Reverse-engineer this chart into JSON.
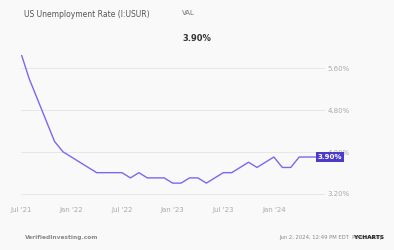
{
  "title_left": "US Unemployment Rate (I:USUR)",
  "title_val_label": "VAL",
  "title_val": "3.90%",
  "footer_left": "VerifiedInvesting.com",
  "footer_right_plain": "Jun 2, 2024, 12:49 PM EDT  Powered by ",
  "footer_ycharts": "YCHARTS",
  "line_color": "#7b68ee",
  "label_bg": "#4b3bc8",
  "yticks": [
    3.2,
    4.0,
    4.8,
    5.6
  ],
  "ytick_labels": [
    "3.20%",
    "4.00%",
    "4.80%",
    "5.60%"
  ],
  "xtick_labels": [
    "Jul '21",
    "Jan '22",
    "Jul '22",
    "Jan '23",
    "Jul '23",
    "Jan '24"
  ],
  "ylim": [
    3.0,
    5.85
  ],
  "xlim": [
    0,
    36
  ],
  "background_color": "#f9f9f9",
  "data_x": [
    0,
    1,
    2,
    3,
    4,
    5,
    6,
    7,
    8,
    9,
    10,
    11,
    12,
    13,
    14,
    15,
    16,
    17,
    18,
    19,
    20,
    21,
    22,
    23,
    24,
    25,
    26,
    27,
    28,
    29,
    30,
    31,
    32,
    33,
    34,
    35
  ],
  "data_y": [
    5.9,
    5.4,
    5.0,
    4.6,
    4.2,
    4.0,
    3.9,
    3.8,
    3.7,
    3.6,
    3.6,
    3.6,
    3.6,
    3.5,
    3.6,
    3.5,
    3.5,
    3.5,
    3.4,
    3.4,
    3.5,
    3.5,
    3.4,
    3.5,
    3.6,
    3.6,
    3.7,
    3.8,
    3.7,
    3.8,
    3.9,
    3.7,
    3.7,
    3.9,
    3.9,
    3.9
  ],
  "xtick_positions": [
    0,
    6,
    12,
    18,
    24,
    30
  ]
}
